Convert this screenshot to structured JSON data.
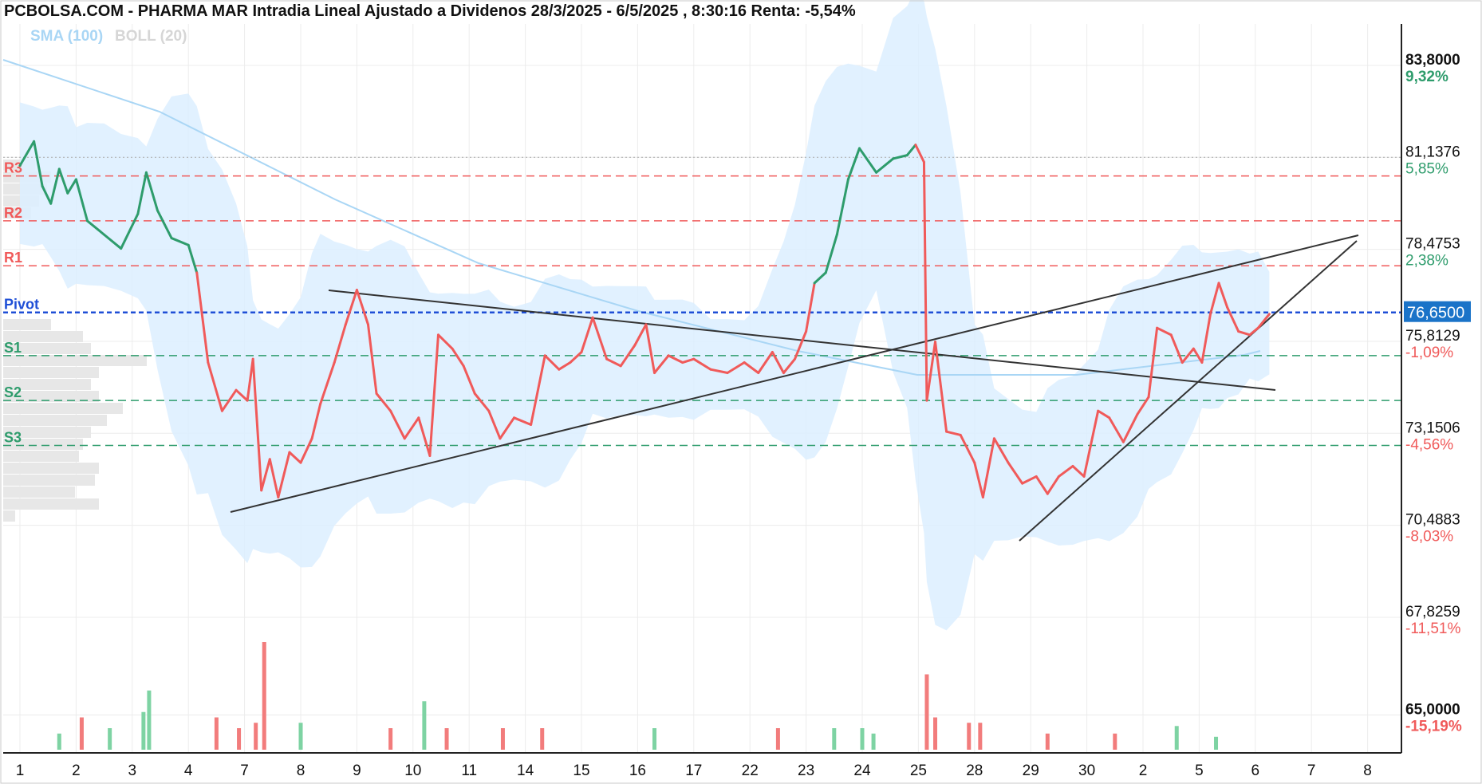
{
  "title": "PCBOLSA.COM - PHARMA MAR Intradia Lineal Ajustado a Dividenos 28/3/2025 - 6/5/2025 , 8:30:16 Renta: -5,54%",
  "legend": {
    "sma": "SMA (100)",
    "boll": "BOLL (20)"
  },
  "colors": {
    "up": "#2e9c6c",
    "down": "#f05a5a",
    "pivot": "#1f4fd6",
    "band": "#dcefff",
    "sma": "#a9d6f5",
    "current_tag": "#1a73c8"
  },
  "current_price_label": "76,6500",
  "chart_data": {
    "type": "line",
    "title": "PCBOLSA.COM - PHARMA MAR Intradia Lineal Ajustado a Dividenos 28/3/2025 - 6/5/2025 , 8:30:16 Renta: -5,54%",
    "ylim": [
      63.9,
      85.0
    ],
    "x_ticks": [
      "1",
      "2",
      "3",
      "4",
      "7",
      "8",
      "9",
      "10",
      "11",
      "14",
      "15",
      "16",
      "17",
      "22",
      "23",
      "24",
      "25",
      "28",
      "29",
      "30",
      "2",
      "5",
      "6",
      "7",
      "8"
    ],
    "y_ticks": [
      {
        "value": "83,8000",
        "pct": "9,32%",
        "bold": true
      },
      {
        "value": "81,1376",
        "pct": "5,85%",
        "bold": false
      },
      {
        "value": "78,4753",
        "pct": "2,38%",
        "bold": false
      },
      {
        "value": "75,8129",
        "pct": "-1,09%",
        "bold": false
      },
      {
        "value": "73,1506",
        "pct": "-4,56%",
        "bold": false
      },
      {
        "value": "70,4883",
        "pct": "-8,03%",
        "bold": false
      },
      {
        "value": "67,8259",
        "pct": "-11,51%",
        "bold": false
      },
      {
        "value": "65,0000",
        "pct": "-15,19%",
        "bold": true
      }
    ],
    "pivot_levels": [
      {
        "name": "R3",
        "value": 80.6,
        "color": "#f05a5a"
      },
      {
        "name": "R2",
        "value": 79.3,
        "color": "#f05a5a"
      },
      {
        "name": "R1",
        "value": 78.0,
        "color": "#f05a5a"
      },
      {
        "name": "Pivot",
        "value": 76.65,
        "color": "#1f4fd6"
      },
      {
        "name": "S1",
        "value": 75.4,
        "color": "#2e9c6c"
      },
      {
        "name": "S2",
        "value": 74.1,
        "color": "#2e9c6c"
      },
      {
        "name": "S3",
        "value": 72.8,
        "color": "#2e9c6c"
      }
    ],
    "reference_price": 81.14,
    "current_price": 76.65,
    "price_series": [
      {
        "x": 0.0,
        "y": 80.9
      },
      {
        "x": 0.25,
        "y": 81.6
      },
      {
        "x": 0.4,
        "y": 80.3
      },
      {
        "x": 0.55,
        "y": 79.8
      },
      {
        "x": 0.7,
        "y": 80.8
      },
      {
        "x": 0.85,
        "y": 80.1
      },
      {
        "x": 1.0,
        "y": 80.5
      },
      {
        "x": 1.2,
        "y": 79.3
      },
      {
        "x": 1.5,
        "y": 78.9
      },
      {
        "x": 1.8,
        "y": 78.5
      },
      {
        "x": 2.1,
        "y": 79.5
      },
      {
        "x": 2.25,
        "y": 80.7
      },
      {
        "x": 2.45,
        "y": 79.6
      },
      {
        "x": 2.7,
        "y": 78.8
      },
      {
        "x": 3.0,
        "y": 78.6
      },
      {
        "x": 3.15,
        "y": 77.8
      },
      {
        "x": 3.35,
        "y": 75.2
      },
      {
        "x": 3.6,
        "y": 73.8
      },
      {
        "x": 3.85,
        "y": 74.4
      },
      {
        "x": 4.05,
        "y": 74.1
      },
      {
        "x": 4.15,
        "y": 75.3
      },
      {
        "x": 4.3,
        "y": 71.5
      },
      {
        "x": 4.45,
        "y": 72.4
      },
      {
        "x": 4.6,
        "y": 71.3
      },
      {
        "x": 4.8,
        "y": 72.6
      },
      {
        "x": 5.0,
        "y": 72.3
      },
      {
        "x": 5.2,
        "y": 73.0
      },
      {
        "x": 5.35,
        "y": 74.0
      },
      {
        "x": 5.6,
        "y": 75.2
      },
      {
        "x": 5.8,
        "y": 76.3
      },
      {
        "x": 6.0,
        "y": 77.3
      },
      {
        "x": 6.2,
        "y": 76.3
      },
      {
        "x": 6.35,
        "y": 74.3
      },
      {
        "x": 6.6,
        "y": 73.8
      },
      {
        "x": 6.85,
        "y": 73.0
      },
      {
        "x": 7.1,
        "y": 73.6
      },
      {
        "x": 7.3,
        "y": 72.5
      },
      {
        "x": 7.45,
        "y": 76.0
      },
      {
        "x": 7.7,
        "y": 75.6
      },
      {
        "x": 7.9,
        "y": 75.1
      },
      {
        "x": 8.1,
        "y": 74.3
      },
      {
        "x": 8.35,
        "y": 73.8
      },
      {
        "x": 8.55,
        "y": 73.0
      },
      {
        "x": 8.8,
        "y": 73.6
      },
      {
        "x": 9.1,
        "y": 73.4
      },
      {
        "x": 9.35,
        "y": 75.4
      },
      {
        "x": 9.6,
        "y": 75.0
      },
      {
        "x": 9.8,
        "y": 75.2
      },
      {
        "x": 10.0,
        "y": 75.5
      },
      {
        "x": 10.2,
        "y": 76.5
      },
      {
        "x": 10.45,
        "y": 75.3
      },
      {
        "x": 10.7,
        "y": 75.1
      },
      {
        "x": 10.95,
        "y": 75.7
      },
      {
        "x": 11.15,
        "y": 76.3
      },
      {
        "x": 11.3,
        "y": 74.9
      },
      {
        "x": 11.55,
        "y": 75.4
      },
      {
        "x": 11.8,
        "y": 75.2
      },
      {
        "x": 12.0,
        "y": 75.3
      },
      {
        "x": 12.3,
        "y": 75.0
      },
      {
        "x": 12.6,
        "y": 74.9
      },
      {
        "x": 12.9,
        "y": 75.2
      },
      {
        "x": 13.15,
        "y": 74.9
      },
      {
        "x": 13.4,
        "y": 75.5
      },
      {
        "x": 13.6,
        "y": 74.9
      },
      {
        "x": 13.8,
        "y": 75.3
      },
      {
        "x": 14.0,
        "y": 76.1
      },
      {
        "x": 14.15,
        "y": 77.5
      },
      {
        "x": 14.35,
        "y": 77.8
      },
      {
        "x": 14.55,
        "y": 78.9
      },
      {
        "x": 14.75,
        "y": 80.5
      },
      {
        "x": 14.95,
        "y": 81.4
      },
      {
        "x": 15.25,
        "y": 80.7
      },
      {
        "x": 15.55,
        "y": 81.1
      },
      {
        "x": 15.8,
        "y": 81.2
      },
      {
        "x": 15.95,
        "y": 81.5
      },
      {
        "x": 16.1,
        "y": 81.0
      },
      {
        "x": 16.15,
        "y": 74.1
      },
      {
        "x": 16.3,
        "y": 75.8
      },
      {
        "x": 16.5,
        "y": 73.2
      },
      {
        "x": 16.75,
        "y": 73.1
      },
      {
        "x": 17.0,
        "y": 72.3
      },
      {
        "x": 17.15,
        "y": 71.3
      },
      {
        "x": 17.35,
        "y": 73.0
      },
      {
        "x": 17.6,
        "y": 72.3
      },
      {
        "x": 17.85,
        "y": 71.7
      },
      {
        "x": 18.1,
        "y": 71.9
      },
      {
        "x": 18.3,
        "y": 71.4
      },
      {
        "x": 18.5,
        "y": 71.9
      },
      {
        "x": 18.75,
        "y": 72.2
      },
      {
        "x": 18.95,
        "y": 71.9
      },
      {
        "x": 19.2,
        "y": 73.8
      },
      {
        "x": 19.4,
        "y": 73.6
      },
      {
        "x": 19.65,
        "y": 72.9
      },
      {
        "x": 19.9,
        "y": 73.7
      },
      {
        "x": 20.1,
        "y": 74.2
      },
      {
        "x": 20.25,
        "y": 76.2
      },
      {
        "x": 20.5,
        "y": 76.0
      },
      {
        "x": 20.7,
        "y": 75.2
      },
      {
        "x": 20.9,
        "y": 75.6
      },
      {
        "x": 21.05,
        "y": 75.2
      },
      {
        "x": 21.2,
        "y": 76.6
      },
      {
        "x": 21.35,
        "y": 77.5
      },
      {
        "x": 21.5,
        "y": 76.8
      },
      {
        "x": 21.7,
        "y": 76.1
      },
      {
        "x": 21.9,
        "y": 76.0
      },
      {
        "x": 22.05,
        "y": 76.2
      },
      {
        "x": 22.25,
        "y": 76.6
      }
    ],
    "volume": [
      {
        "x": 0.7,
        "v": 0.15,
        "up": true
      },
      {
        "x": 1.1,
        "v": 0.3,
        "up": false
      },
      {
        "x": 1.6,
        "v": 0.2,
        "up": true
      },
      {
        "x": 2.2,
        "v": 0.35,
        "up": true
      },
      {
        "x": 2.3,
        "v": 0.55,
        "up": true
      },
      {
        "x": 3.5,
        "v": 0.3,
        "up": false
      },
      {
        "x": 3.9,
        "v": 0.2,
        "up": false
      },
      {
        "x": 4.2,
        "v": 0.25,
        "up": false
      },
      {
        "x": 4.35,
        "v": 1.0,
        "up": false
      },
      {
        "x": 5.0,
        "v": 0.25,
        "up": true
      },
      {
        "x": 6.6,
        "v": 0.2,
        "up": false
      },
      {
        "x": 7.2,
        "v": 0.45,
        "up": true
      },
      {
        "x": 7.6,
        "v": 0.2,
        "up": false
      },
      {
        "x": 8.6,
        "v": 0.2,
        "up": false
      },
      {
        "x": 9.3,
        "v": 0.2,
        "up": false
      },
      {
        "x": 11.3,
        "v": 0.2,
        "up": true
      },
      {
        "x": 13.5,
        "v": 0.2,
        "up": false
      },
      {
        "x": 14.5,
        "v": 0.2,
        "up": true
      },
      {
        "x": 15.0,
        "v": 0.2,
        "up": true
      },
      {
        "x": 15.2,
        "v": 0.15,
        "up": true
      },
      {
        "x": 16.15,
        "v": 0.7,
        "up": false
      },
      {
        "x": 16.3,
        "v": 0.3,
        "up": false
      },
      {
        "x": 16.9,
        "v": 0.25,
        "up": false
      },
      {
        "x": 17.1,
        "v": 0.25,
        "up": false
      },
      {
        "x": 18.3,
        "v": 0.15,
        "up": false
      },
      {
        "x": 19.5,
        "v": 0.15,
        "up": false
      },
      {
        "x": 20.6,
        "v": 0.22,
        "up": true
      },
      {
        "x": 21.3,
        "v": 0.12,
        "up": true
      }
    ]
  }
}
